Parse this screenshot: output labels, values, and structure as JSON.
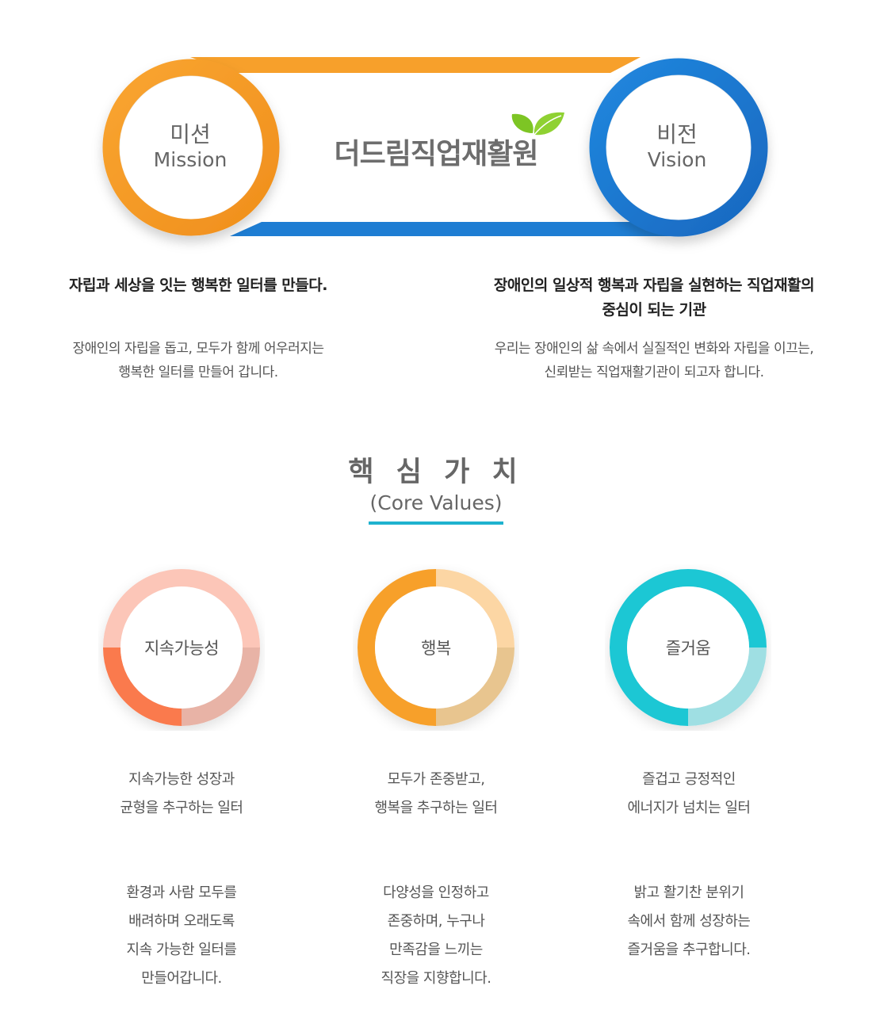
{
  "banner": {
    "title": "더드림직업재활원",
    "mission": {
      "ko": "미션",
      "en": "Mission"
    },
    "vision": {
      "ko": "비전",
      "en": "Vision"
    },
    "colors": {
      "orange": "#f7a02b",
      "blue": "#1e7dd3",
      "leaf": "#7dc524"
    }
  },
  "mission": {
    "headline": "자립과 세상을 잇는 행복한 일터를 만들다.",
    "description": [
      "장애인의 자립을 돕고, 모두가 함께 어우러지는",
      "행복한 일터를 만들어 갑니다."
    ]
  },
  "vision": {
    "headline": [
      "장애인의 일상적 행복과 자립을 실현하는 직업재활의",
      "중심이 되는 기관"
    ],
    "description": [
      "우리는 장애인의 삶 속에서 실질적인 변화와 자립을 이끄는,",
      "신뢰받는 직업재활기관이 되고자 합니다."
    ]
  },
  "core_values": {
    "title_ko": "핵 심 가 치",
    "title_en": "(Core Values)",
    "accent": "#1fb2cf",
    "items": [
      {
        "label": "지속가능성",
        "subtitle": [
          "지속가능한 성장과",
          "균형을 추구하는 일터"
        ],
        "description": [
          "환경과 사람 모두를",
          "배려하며 오래도록",
          "지속 가능한 일터를",
          "만들어갑니다."
        ],
        "colors": {
          "light": "#fcc6b8",
          "dark": "#fa7a4e",
          "shade": "#e8b3a6"
        }
      },
      {
        "label": "행복",
        "subtitle": [
          "모두가 존중받고,",
          "행복을 추구하는 일터"
        ],
        "description": [
          "다양성을 인정하고",
          "존중하며, 누구나",
          "만족감을 느끼는",
          "직장을 지향합니다."
        ],
        "colors": {
          "light": "#fcd6a4",
          "dark": "#f7a02b",
          "shade": "#e8c58f"
        }
      },
      {
        "label": "즐거움",
        "subtitle": [
          "즐겁고 긍정적인",
          "에너지가 넘치는 일터"
        ],
        "description": [
          "밝고 활기찬 분위기",
          "속에서 함께 성장하는",
          "즐거움을 추구합니다."
        ],
        "colors": {
          "light": "#9fdfe3",
          "dark": "#1fc7d4",
          "shade": "#8fcfd6"
        }
      }
    ]
  }
}
